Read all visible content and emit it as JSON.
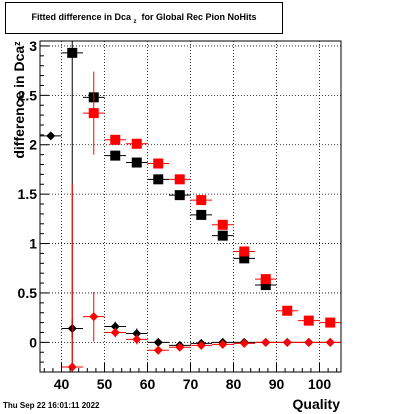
{
  "chart_data": {
    "type": "scatter",
    "title": "Fitted difference in Dca",
    "title_subscript": "z",
    "title_suffix": "for Global Rec Pion NoHits",
    "xlabel": "Quality",
    "ylabel": "difference in Dca",
    "ylabel_subscript": "z",
    "xlim": [
      35,
      105
    ],
    "ylim": [
      -0.3,
      3.05
    ],
    "x_ticks": [
      40,
      50,
      60,
      70,
      80,
      90,
      100
    ],
    "y_ticks": [
      0,
      0.5,
      1,
      1.5,
      2,
      2.5,
      3
    ],
    "y_tick_labels": [
      "0",
      "0.5",
      "1",
      "1.5",
      "2",
      "2.5",
      "3"
    ],
    "grid": true,
    "legend": "none",
    "series": [
      {
        "marker": "square",
        "color": "#000000",
        "points": [
          {
            "x": 42.5,
            "y": 2.93,
            "xerr": 2.5,
            "yerr": 3.3
          },
          {
            "x": 47.5,
            "y": 2.48,
            "xerr": 2.5,
            "yerr": 0.04
          },
          {
            "x": 52.5,
            "y": 1.89,
            "xerr": 2.5,
            "yerr": 0.04
          },
          {
            "x": 57.5,
            "y": 1.82,
            "xerr": 2.5,
            "yerr": 0.03
          },
          {
            "x": 62.5,
            "y": 1.65,
            "xerr": 2.5,
            "yerr": 0.02
          },
          {
            "x": 67.5,
            "y": 1.49,
            "xerr": 2.5,
            "yerr": 0.02
          },
          {
            "x": 72.5,
            "y": 1.29,
            "xerr": 2.5,
            "yerr": 0.02
          },
          {
            "x": 77.5,
            "y": 1.08,
            "xerr": 2.5,
            "yerr": 0.02
          },
          {
            "x": 82.5,
            "y": 0.85,
            "xerr": 2.5,
            "yerr": 0.02
          },
          {
            "x": 87.5,
            "y": 0.58,
            "xerr": 2.5,
            "yerr": 0.02
          }
        ]
      },
      {
        "marker": "square",
        "color": "#ff0000",
        "points": [
          {
            "x": 47.5,
            "y": 2.32,
            "xerr": 2.5,
            "yerr": 0.42
          },
          {
            "x": 52.5,
            "y": 2.05,
            "xerr": 2.5,
            "yerr": 0.04
          },
          {
            "x": 57.5,
            "y": 2.01,
            "xerr": 2.5,
            "yerr": 0.03
          },
          {
            "x": 62.5,
            "y": 1.81,
            "xerr": 2.5,
            "yerr": 0.02
          },
          {
            "x": 67.5,
            "y": 1.65,
            "xerr": 2.5,
            "yerr": 0.02
          },
          {
            "x": 72.5,
            "y": 1.44,
            "xerr": 2.5,
            "yerr": 0.02
          },
          {
            "x": 77.5,
            "y": 1.19,
            "xerr": 2.5,
            "yerr": 0.02
          },
          {
            "x": 82.5,
            "y": 0.92,
            "xerr": 2.5,
            "yerr": 0.02
          },
          {
            "x": 87.5,
            "y": 0.64,
            "xerr": 2.5,
            "yerr": 0.02
          },
          {
            "x": 92.5,
            "y": 0.32,
            "xerr": 2.5,
            "yerr": 0.02
          },
          {
            "x": 97.5,
            "y": 0.22,
            "xerr": 2.5,
            "yerr": 0.02
          },
          {
            "x": 102.5,
            "y": 0.2,
            "xerr": 2.5,
            "yerr": 0.02
          }
        ]
      },
      {
        "marker": "diamond",
        "color": "#000000",
        "points": [
          {
            "x": 37.5,
            "y": 2.09,
            "xerr": 2.5,
            "yerr": 0.02
          },
          {
            "x": 42.5,
            "y": 0.14,
            "xerr": 2.5,
            "yerr": 0.1
          },
          {
            "x": 52.5,
            "y": 0.16,
            "xerr": 2.5,
            "yerr": 0.05
          },
          {
            "x": 57.5,
            "y": 0.09,
            "xerr": 2.5,
            "yerr": 0.05
          },
          {
            "x": 62.5,
            "y": 0.0,
            "xerr": 2.5,
            "yerr": 0.02
          },
          {
            "x": 67.5,
            "y": -0.03,
            "xerr": 2.5,
            "yerr": 0.02
          },
          {
            "x": 72.5,
            "y": -0.01,
            "xerr": 2.5,
            "yerr": 0.02
          },
          {
            "x": 77.5,
            "y": 0.0,
            "xerr": 2.5,
            "yerr": 0.02
          },
          {
            "x": 82.5,
            "y": 0.0,
            "xerr": 2.5,
            "yerr": 0.02
          },
          {
            "x": 87.5,
            "y": 0.0,
            "xerr": 2.5,
            "yerr": 0.02
          },
          {
            "x": 92.5,
            "y": 0.0,
            "xerr": 2.5,
            "yerr": 0.02
          },
          {
            "x": 97.5,
            "y": 0.0,
            "xerr": 2.5,
            "yerr": 0.02
          },
          {
            "x": 102.5,
            "y": 0.0,
            "xerr": 2.5,
            "yerr": 0.02
          }
        ]
      },
      {
        "marker": "diamond",
        "color": "#ff0000",
        "points": [
          {
            "x": 42.5,
            "y": -0.25,
            "xerr": 2.5,
            "yerr": 1.85
          },
          {
            "x": 47.5,
            "y": 0.26,
            "xerr": 2.5,
            "yerr": 0.25
          },
          {
            "x": 52.5,
            "y": 0.1,
            "xerr": 2.5,
            "yerr": 0.05
          },
          {
            "x": 57.5,
            "y": 0.03,
            "xerr": 2.5,
            "yerr": 0.05
          },
          {
            "x": 62.5,
            "y": -0.08,
            "xerr": 2.5,
            "yerr": 0.02
          },
          {
            "x": 67.5,
            "y": -0.05,
            "xerr": 2.5,
            "yerr": 0.02
          },
          {
            "x": 72.5,
            "y": -0.03,
            "xerr": 2.5,
            "yerr": 0.02
          },
          {
            "x": 77.5,
            "y": -0.02,
            "xerr": 2.5,
            "yerr": 0.02
          },
          {
            "x": 82.5,
            "y": -0.01,
            "xerr": 2.5,
            "yerr": 0.02
          },
          {
            "x": 87.5,
            "y": 0.0,
            "xerr": 2.5,
            "yerr": 0.02
          },
          {
            "x": 92.5,
            "y": 0.0,
            "xerr": 2.5,
            "yerr": 0.02
          },
          {
            "x": 97.5,
            "y": 0.0,
            "xerr": 2.5,
            "yerr": 0.02
          },
          {
            "x": 102.5,
            "y": 0.0,
            "xerr": 2.5,
            "yerr": 0.02
          }
        ]
      }
    ]
  },
  "footer": {
    "timestamp": "Thu Sep 22 16:01:11 2022"
  }
}
